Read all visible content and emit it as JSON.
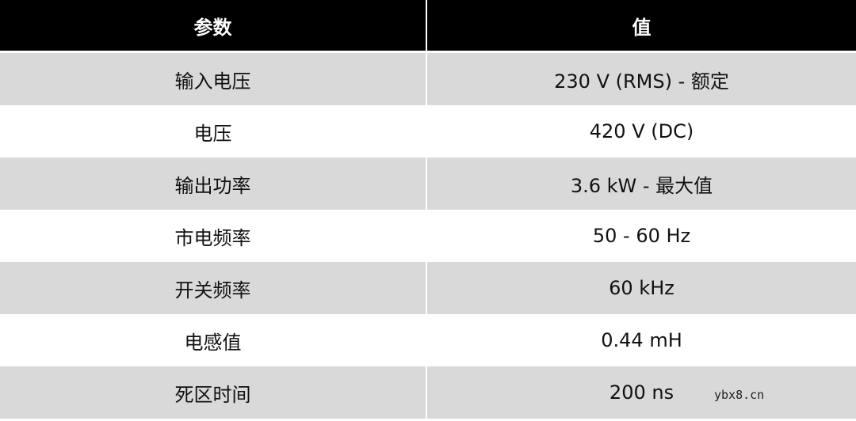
{
  "header": {
    "param": "参数",
    "value": "值"
  },
  "rows": [
    {
      "param": "输入电压",
      "value": "230 V (RMS)  - 额定"
    },
    {
      "param": "电压",
      "value": "420 V (DC)"
    },
    {
      "param": "输出功率",
      "value": "3.6 kW - 最大值"
    },
    {
      "param": "市电频率",
      "value": "50 - 60 Hz"
    },
    {
      "param": "开关频率",
      "value": "60 kHz"
    },
    {
      "param": "电感值",
      "value": "0.44 mH"
    },
    {
      "param": "死区时间",
      "value": "200 ns"
    }
  ],
  "watermark": "ybx8.cn",
  "colors": {
    "header_bg": "#000000",
    "stripe": "#d9d9d9"
  }
}
